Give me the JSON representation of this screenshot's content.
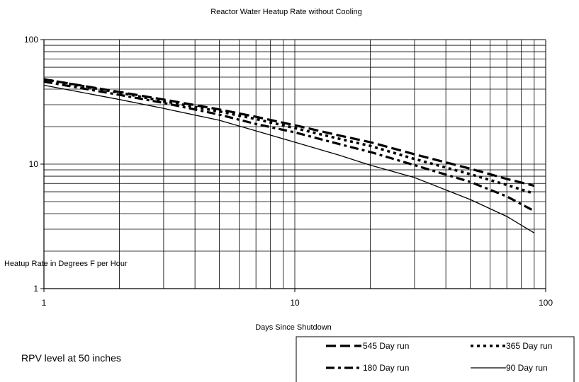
{
  "chart_data": {
    "type": "line",
    "title": "Reactor Water Heatup Rate without Cooling",
    "xlabel": "Days Since Shutdown",
    "ylabel": "Heatup Rate in Degrees F per Hour",
    "x_scale": "log",
    "y_scale": "log",
    "xlim": [
      1,
      100
    ],
    "ylim": [
      1,
      100
    ],
    "x_ticks": [
      "1",
      "10",
      "100"
    ],
    "y_ticks": [
      "1",
      "10",
      "100"
    ],
    "grid": true,
    "legend_position": "bottom-right",
    "annotation": "RPV level at 50 inches",
    "series": [
      {
        "name": "545 Day run",
        "style": "long-dash",
        "x": [
          1,
          2,
          3,
          5,
          7,
          10,
          15,
          20,
          30,
          50,
          70,
          90
        ],
        "y": [
          48,
          38,
          33,
          27.5,
          24,
          20.5,
          17,
          15,
          12,
          9.2,
          7.6,
          6.7
        ]
      },
      {
        "name": "365 Day run",
        "style": "dot",
        "x": [
          1,
          2,
          3,
          5,
          7,
          10,
          15,
          20,
          30,
          50,
          70,
          90
        ],
        "y": [
          48,
          37.5,
          32,
          26.5,
          23,
          19.5,
          16,
          14,
          11,
          8.3,
          6.8,
          5.8
        ]
      },
      {
        "name": "180 Day run",
        "style": "dash-dot",
        "x": [
          1,
          2,
          3,
          5,
          7,
          10,
          15,
          20,
          30,
          50,
          70,
          90
        ],
        "y": [
          46,
          36,
          31,
          25,
          21,
          18,
          14.5,
          12.5,
          9.8,
          7.2,
          5.5,
          4.2
        ]
      },
      {
        "name": "90 Day run",
        "style": "solid",
        "x": [
          1,
          2,
          3,
          5,
          7,
          10,
          15,
          20,
          30,
          50,
          70,
          90
        ],
        "y": [
          43,
          33,
          28,
          22.5,
          18.5,
          15,
          11.8,
          9.8,
          7.8,
          5.2,
          3.8,
          2.8
        ]
      }
    ]
  }
}
